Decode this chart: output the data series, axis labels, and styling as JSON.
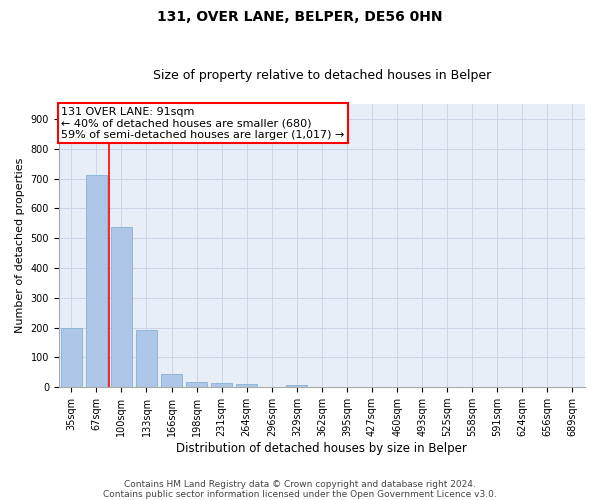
{
  "title1": "131, OVER LANE, BELPER, DE56 0HN",
  "title2": "Size of property relative to detached houses in Belper",
  "xlabel": "Distribution of detached houses by size in Belper",
  "ylabel": "Number of detached properties",
  "categories": [
    "35sqm",
    "67sqm",
    "100sqm",
    "133sqm",
    "166sqm",
    "198sqm",
    "231sqm",
    "264sqm",
    "296sqm",
    "329sqm",
    "362sqm",
    "395sqm",
    "427sqm",
    "460sqm",
    "493sqm",
    "525sqm",
    "558sqm",
    "591sqm",
    "624sqm",
    "656sqm",
    "689sqm"
  ],
  "values": [
    200,
    713,
    537,
    191,
    43,
    19,
    14,
    10,
    0,
    8,
    0,
    0,
    0,
    0,
    0,
    0,
    0,
    0,
    0,
    0,
    0
  ],
  "bar_color": "#aec6e8",
  "bar_edge_color": "#7aaacf",
  "annotation_box_text": "131 OVER LANE: 91sqm\n← 40% of detached houses are smaller (680)\n59% of semi-detached houses are larger (1,017) →",
  "annotation_box_color": "white",
  "annotation_box_edge_color": "red",
  "vline_x": 1.5,
  "vline_color": "red",
  "ylim": [
    0,
    950
  ],
  "yticks": [
    0,
    100,
    200,
    300,
    400,
    500,
    600,
    700,
    800,
    900
  ],
  "grid_color": "#ccd5e8",
  "bg_color": "#e8eef8",
  "footer": "Contains HM Land Registry data © Crown copyright and database right 2024.\nContains public sector information licensed under the Open Government Licence v3.0.",
  "title1_fontsize": 10,
  "title2_fontsize": 9,
  "xlabel_fontsize": 8.5,
  "ylabel_fontsize": 8,
  "tick_fontsize": 7,
  "annotation_fontsize": 8,
  "footer_fontsize": 6.5
}
